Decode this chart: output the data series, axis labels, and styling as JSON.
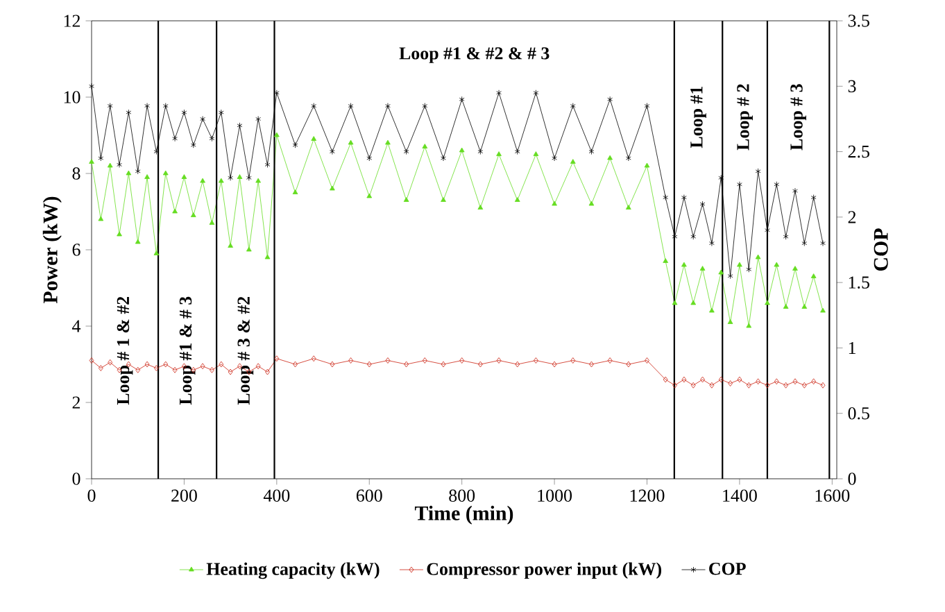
{
  "chart_data": {
    "type": "line",
    "xlabel": "Time (min)",
    "ylabel": "Power (kW)",
    "y2label": "COP",
    "xlim": [
      0,
      1610
    ],
    "xticks": [
      0,
      200,
      400,
      600,
      800,
      1000,
      1200,
      1400,
      1600
    ],
    "ylim": [
      0,
      12
    ],
    "yticks": [
      0,
      2,
      4,
      6,
      8,
      10,
      12
    ],
    "y2lim": [
      0,
      3.5
    ],
    "y2ticks": [
      0,
      0.5,
      1,
      1.5,
      2,
      2.5,
      3,
      3.5
    ],
    "x": [
      0,
      20,
      40,
      60,
      80,
      100,
      120,
      140,
      160,
      180,
      200,
      220,
      240,
      260,
      280,
      300,
      320,
      340,
      360,
      380,
      400,
      440,
      480,
      520,
      560,
      600,
      640,
      680,
      720,
      760,
      800,
      840,
      880,
      920,
      960,
      1000,
      1040,
      1080,
      1120,
      1160,
      1200,
      1240,
      1260,
      1280,
      1300,
      1320,
      1340,
      1360,
      1380,
      1400,
      1420,
      1440,
      1460,
      1480,
      1500,
      1520,
      1540,
      1560,
      1580
    ],
    "series": [
      {
        "name": "Heating capacity (kW)",
        "color": "#66dd22",
        "marker": "triangle",
        "values": [
          8.3,
          6.8,
          8.2,
          6.4,
          8.0,
          6.2,
          7.9,
          5.9,
          8.0,
          7.0,
          7.9,
          6.9,
          7.8,
          6.7,
          7.8,
          6.1,
          7.9,
          6.0,
          7.8,
          5.8,
          9.0,
          7.5,
          8.9,
          7.6,
          8.8,
          7.4,
          8.8,
          7.3,
          8.7,
          7.3,
          8.6,
          7.1,
          8.5,
          7.3,
          8.5,
          7.2,
          8.3,
          7.2,
          8.4,
          7.1,
          8.2,
          5.7,
          4.6,
          5.6,
          4.6,
          5.5,
          4.4,
          5.4,
          4.1,
          5.6,
          4.0,
          5.8,
          4.6,
          5.6,
          4.5,
          5.5,
          4.5,
          5.3,
          4.4
        ]
      },
      {
        "name": "Compressor power input (kW)",
        "color": "#cc2211",
        "marker": "diamond",
        "values": [
          3.1,
          2.9,
          3.05,
          2.85,
          3.0,
          2.85,
          3.0,
          2.9,
          3.0,
          2.85,
          2.95,
          2.85,
          2.95,
          2.85,
          3.0,
          2.8,
          2.95,
          2.8,
          2.95,
          2.8,
          3.15,
          3.0,
          3.15,
          3.0,
          3.1,
          3.0,
          3.1,
          3.0,
          3.1,
          3.0,
          3.1,
          3.0,
          3.1,
          3.0,
          3.1,
          3.0,
          3.1,
          3.0,
          3.1,
          3.0,
          3.1,
          2.6,
          2.45,
          2.6,
          2.45,
          2.6,
          2.45,
          2.6,
          2.5,
          2.6,
          2.45,
          2.55,
          2.45,
          2.55,
          2.45,
          2.55,
          2.45,
          2.55,
          2.45
        ]
      },
      {
        "name": "COP",
        "color": "#000000",
        "marker": "cross",
        "axis": "y2",
        "values": [
          3.0,
          2.45,
          2.85,
          2.4,
          2.8,
          2.35,
          2.85,
          2.5,
          2.85,
          2.6,
          2.8,
          2.55,
          2.75,
          2.6,
          2.8,
          2.3,
          2.7,
          2.3,
          2.75,
          2.4,
          2.95,
          2.55,
          2.85,
          2.5,
          2.85,
          2.45,
          2.85,
          2.5,
          2.85,
          2.45,
          2.9,
          2.5,
          2.95,
          2.5,
          2.95,
          2.45,
          2.85,
          2.5,
          2.9,
          2.45,
          2.85,
          2.15,
          1.85,
          2.15,
          1.85,
          2.1,
          1.8,
          2.3,
          1.55,
          2.25,
          1.6,
          2.35,
          1.9,
          2.25,
          1.85,
          2.2,
          1.8,
          2.15,
          1.8
        ]
      }
    ],
    "ref_lines": [
      {
        "axis": "x",
        "value": 144
      },
      {
        "axis": "x",
        "value": 270
      },
      {
        "axis": "x",
        "value": 395
      },
      {
        "axis": "x",
        "value": 1259
      },
      {
        "axis": "x",
        "value": 1363
      },
      {
        "axis": "x",
        "value": 1460
      },
      {
        "axis": "x",
        "value": 1594
      }
    ],
    "annotations": [
      "Loop # 1 & #2",
      "Loop #1 & # 3",
      "Loop # 3 & #2",
      "Loop  #1 & #2 & # 3",
      "Loop  #1",
      "Loop # 2",
      "Loop # 3"
    ],
    "legend": "bottom",
    "grid": false
  }
}
